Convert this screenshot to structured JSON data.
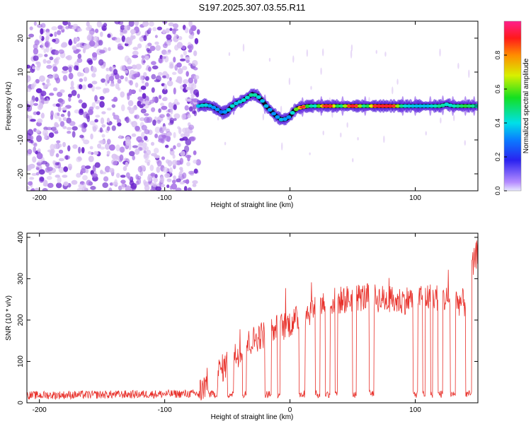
{
  "title": "S197.2025.307.03.55.R11",
  "colors": {
    "snr_line": "#e8302a",
    "ridge_outline": "#000000",
    "scatter_light": "#d9c2f2",
    "scatter_mid": "#a873e6",
    "scatter_dark": "#6a22cc"
  },
  "chart_data": [
    {
      "type": "heatmap",
      "title": "S197.2025.307.03.55.R11",
      "xlabel": "Height of straight line (km)",
      "ylabel": "Frequency (Hz)",
      "xlim": [
        -210,
        150
      ],
      "ylim": [
        -25,
        25
      ],
      "xticks": [
        -200,
        -100,
        0,
        100
      ],
      "yticks": [
        -20,
        -10,
        0,
        10,
        20
      ],
      "noise_region": [
        -210,
        -73
      ],
      "colorbar": {
        "label": "Normalized spectral amplitude",
        "range": [
          0,
          1
        ],
        "ticks": [
          "0.0",
          "0.2",
          "0.4",
          "0.6",
          "0.8"
        ],
        "tick_values": [
          0,
          0.2,
          0.4,
          0.6,
          0.8
        ]
      },
      "ridge": {
        "x": [
          -73,
          -68,
          -63,
          -58,
          -54,
          -50,
          -46,
          -42,
          -38,
          -34,
          -30,
          -26,
          -22,
          -19,
          -15,
          -11,
          -7,
          -3,
          0,
          3,
          6,
          10,
          15,
          20,
          30,
          40,
          50,
          60,
          70,
          80,
          90,
          100,
          110,
          120,
          125,
          130,
          140,
          150
        ],
        "y": [
          0,
          0.3,
          0,
          -1,
          -2,
          -1.5,
          0,
          1,
          1.5,
          2.5,
          3.5,
          3,
          1.5,
          0,
          -1.5,
          -3,
          -4,
          -3.8,
          -3,
          -1.5,
          -0.7,
          -0.3,
          0,
          0,
          0,
          0,
          0,
          0,
          0,
          0,
          0,
          0,
          0,
          0,
          0.5,
          0,
          0,
          0
        ],
        "amplitude": [
          0.45,
          0.5,
          0.4,
          0.4,
          0.35,
          0.45,
          0.5,
          0.45,
          0.5,
          0.5,
          0.55,
          0.5,
          0.45,
          0.45,
          0.4,
          0.4,
          0.45,
          0.4,
          0.4,
          0.55,
          0.7,
          0.85,
          0.55,
          0.5,
          0.95,
          0.5,
          0.95,
          0.5,
          0.95,
          0.95,
          0.5,
          0.45,
          0.45,
          0.55,
          0.5,
          0.5,
          0.6,
          0.5
        ]
      }
    },
    {
      "type": "line",
      "xlabel": "Height of straight line (km)",
      "ylabel": "SNR (10 * v/v)",
      "xlim": [
        -210,
        150
      ],
      "ylim": [
        0,
        410
      ],
      "xticks": [
        -200,
        -100,
        0,
        100
      ],
      "yticks": [
        0,
        100,
        200,
        300,
        400
      ],
      "series": [
        {
          "name": "SNR",
          "baseline_x": [
            -210,
            -73,
            -65,
            -55,
            -45,
            -35,
            -25,
            -15,
            -5,
            5,
            15,
            25,
            35,
            45,
            55,
            65,
            75,
            85,
            95,
            105,
            115,
            125,
            135,
            140,
            145,
            150
          ],
          "baseline_y": [
            18,
            22,
            55,
            80,
            110,
            140,
            160,
            175,
            185,
            200,
            220,
            240,
            245,
            250,
            255,
            255,
            250,
            245,
            250,
            255,
            255,
            250,
            245,
            240,
            320,
            370
          ],
          "dropouts": [
            [
              -65,
              -58
            ],
            [
              -50,
              -45
            ],
            [
              -38,
              -35
            ],
            [
              -20,
              -15
            ],
            [
              -10,
              -8
            ],
            [
              7,
              12
            ],
            [
              20,
              24
            ],
            [
              28,
              32
            ],
            [
              36,
              38
            ],
            [
              50,
              53
            ],
            [
              63,
              67
            ],
            [
              98,
              102
            ],
            [
              106,
              108
            ],
            [
              112,
              114
            ],
            [
              118,
              122
            ],
            [
              128,
              132
            ],
            [
              140,
              145
            ]
          ],
          "dropout_level": 12
        }
      ]
    }
  ]
}
